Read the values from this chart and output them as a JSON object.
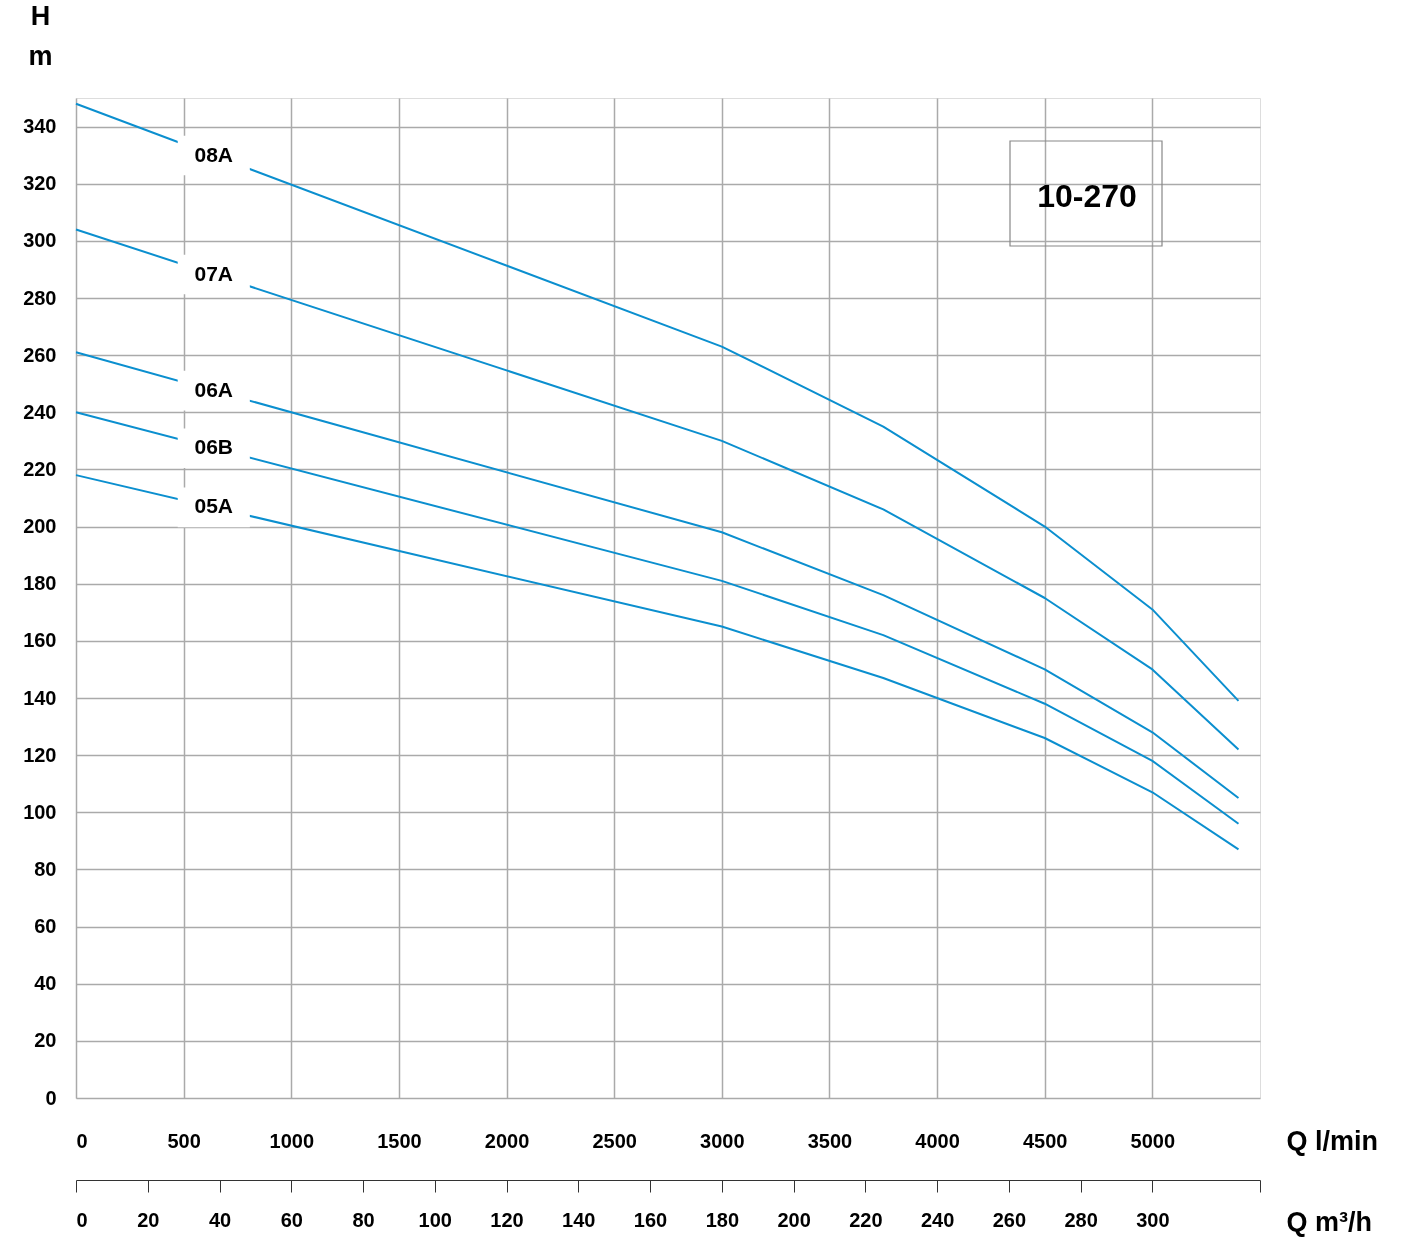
{
  "chart_data": {
    "type": "line",
    "x": [
      0,
      3000,
      3750,
      4500,
      5000,
      5400
    ],
    "series": [
      {
        "name": "08A",
        "color": "#0b8fcf",
        "values": [
          348,
          263,
          235,
          200,
          171,
          139
        ]
      },
      {
        "name": "07A",
        "color": "#0b8fcf",
        "values": [
          304,
          230,
          206,
          175,
          150,
          122
        ]
      },
      {
        "name": "06A",
        "color": "#0b8fcf",
        "values": [
          261,
          198,
          176,
          150,
          128,
          105
        ]
      },
      {
        "name": "06B",
        "color": "#0b8fcf",
        "values": [
          240,
          181,
          162,
          138,
          118,
          96
        ]
      },
      {
        "name": "05A",
        "color": "#0b8fcf",
        "values": [
          218,
          165,
          147,
          126,
          107,
          87
        ]
      }
    ],
    "xlabel": "Q l/min",
    "x2label": "Q m³/h",
    "ylabel": "H\nm",
    "xlim": [
      0,
      5500
    ],
    "xticks": [
      0,
      500,
      1000,
      1500,
      2000,
      2500,
      3000,
      3500,
      4000,
      4500,
      5000
    ],
    "x2lim": [
      0,
      330
    ],
    "x2ticks": [
      0,
      20,
      40,
      60,
      80,
      100,
      120,
      140,
      160,
      180,
      200,
      220,
      240,
      260,
      280,
      300,
      {
        "value": 330,
        "label": null
      }
    ],
    "ylim": [
      0,
      350
    ],
    "yticks": [
      0,
      20,
      40,
      60,
      80,
      100,
      120,
      140,
      160,
      180,
      200,
      220,
      240,
      260,
      280,
      300,
      320,
      340
    ],
    "annotations": [
      "10-270"
    ],
    "grid": true,
    "legend": false,
    "marker": "none",
    "line_style": "solid"
  }
}
